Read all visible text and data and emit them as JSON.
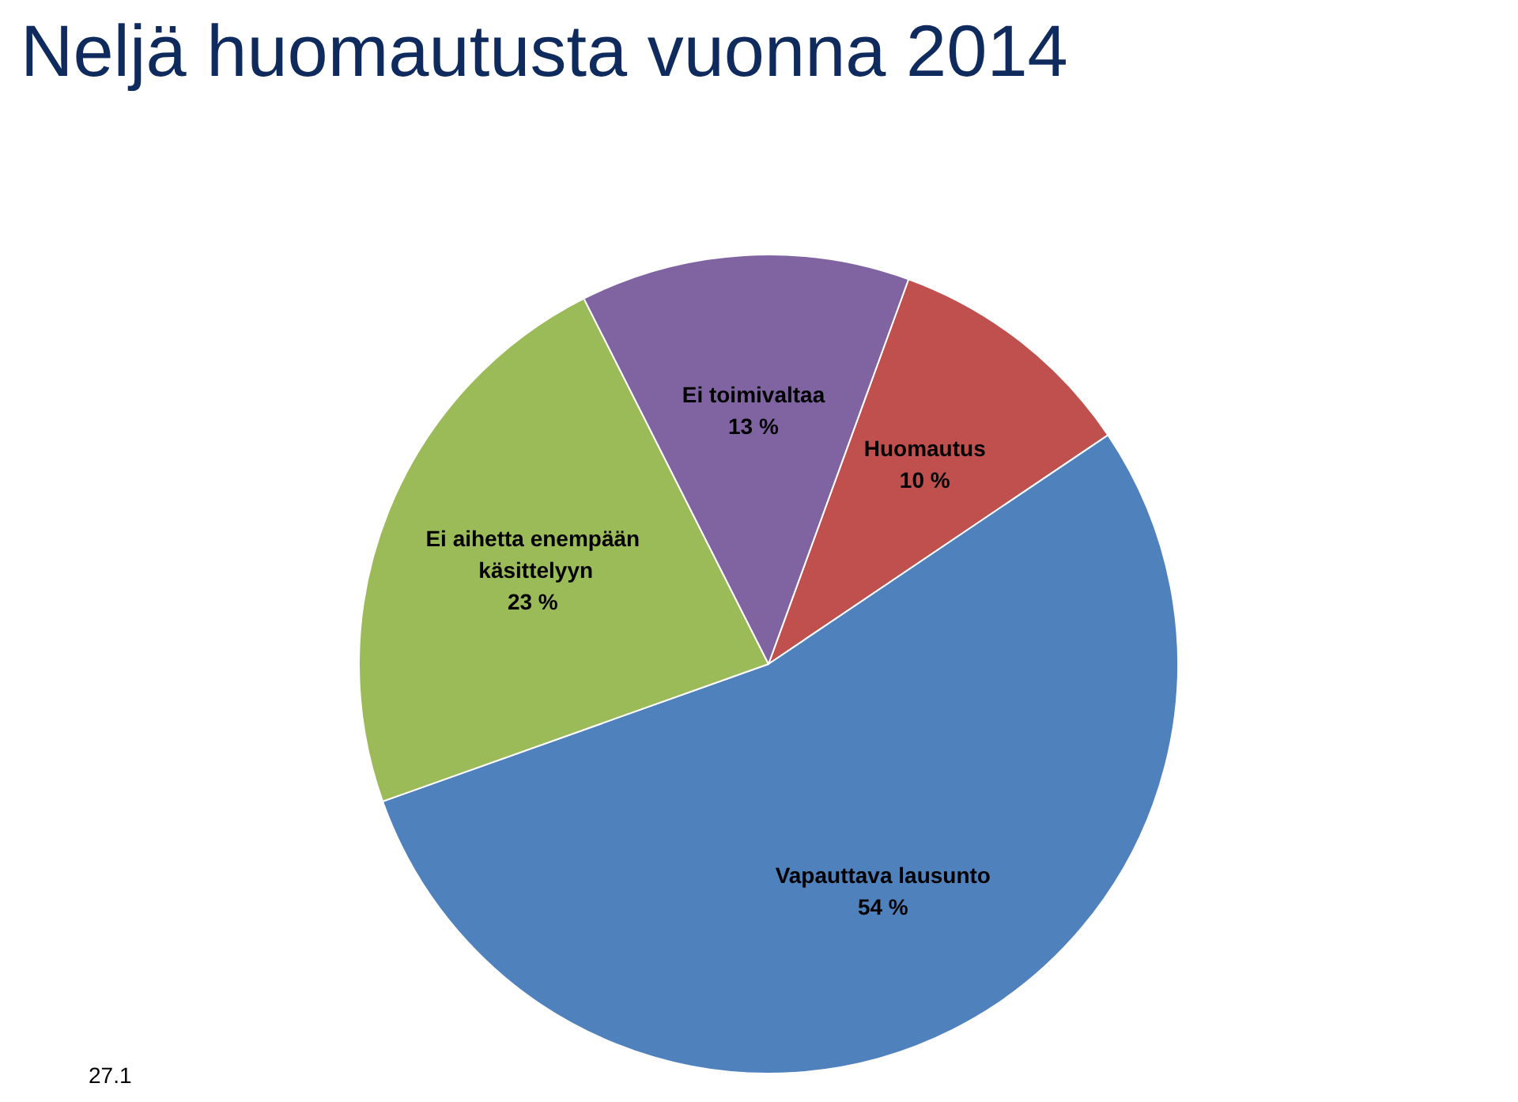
{
  "chart_data": {
    "type": "pie",
    "title": "Neljä huomautusta vuonna 2014",
    "categories": [
      "Huomautus",
      "Vapauttava lausunto",
      "Ei aihetta enempään käsittelyyn",
      "Ei toimivaltaa"
    ],
    "values": [
      10,
      54,
      23,
      13
    ],
    "colors": [
      "#c0504d",
      "#4f81bd",
      "#9bbb59",
      "#8064a2"
    ],
    "value_labels": [
      "10 %",
      "54 %",
      "23 %",
      "13 %"
    ],
    "annotations": [
      "27.1"
    ]
  }
}
